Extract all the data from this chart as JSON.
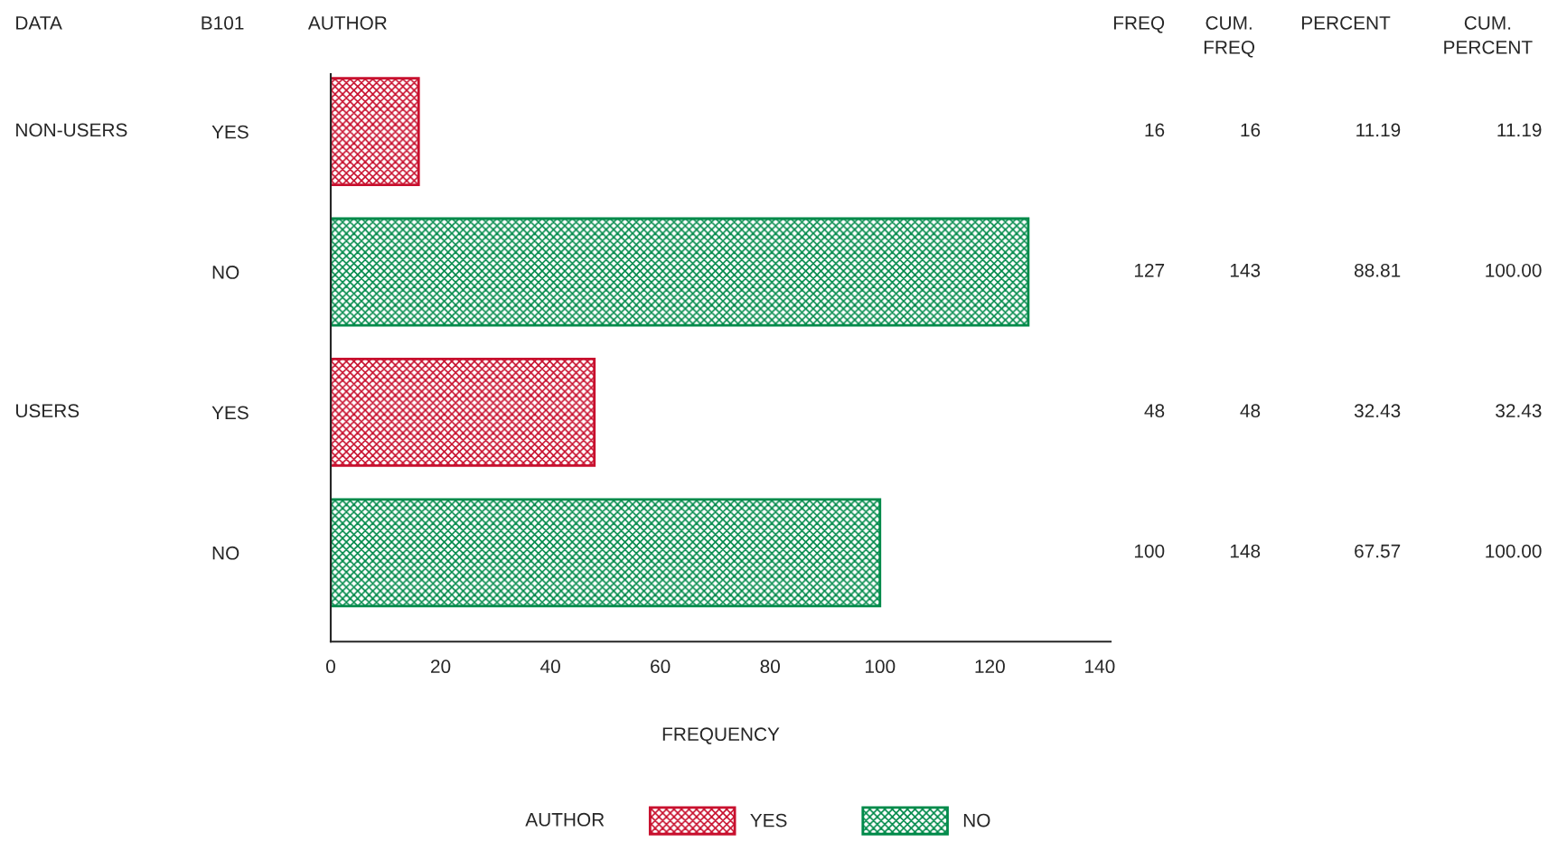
{
  "chart_data": {
    "type": "bar",
    "orientation": "horizontal",
    "categories": [
      "YES",
      "NO",
      "YES",
      "NO"
    ],
    "series": [
      {
        "name": "YES",
        "color": "#c8102e",
        "values": [
          16,
          null,
          48,
          null
        ]
      },
      {
        "name": "NO",
        "color": "#008a4a",
        "values": [
          null,
          127,
          null,
          100
        ]
      }
    ],
    "xlim": [
      0,
      142
    ],
    "xticks": [
      0,
      20,
      40,
      60,
      80,
      100,
      120,
      140
    ],
    "xlabel": "FREQUENCY",
    "legend_title": "AUTHOR",
    "legend": "bottom",
    "grid": false,
    "annotations": [
      "DATA",
      "B101",
      "AUTHOR",
      "FREQ",
      "CUM.\nFREQ",
      "PERCENT",
      "CUM.\nPERCENT",
      "NON-USERS",
      "USERS",
      "16",
      "127",
      "48",
      "100",
      "16",
      "143",
      "48",
      "148",
      "11.19",
      "88.81",
      "32.43",
      "67.57",
      "11.19",
      "100.00",
      "32.43",
      "100.00"
    ]
  }
}
